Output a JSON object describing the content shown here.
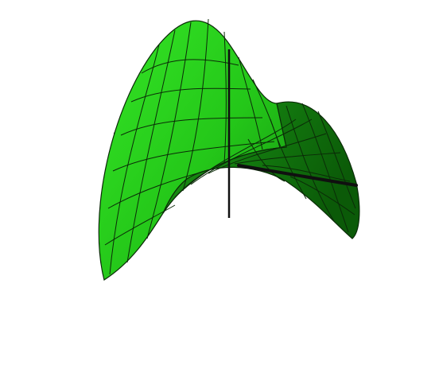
{
  "figure": {
    "kind": "hyperbolic-paraboloid",
    "surface_colors": {
      "lit_face": "#2bdc1d",
      "mid_face": "#1fa416",
      "shadow_face": "#0d6e0a",
      "mesh_lines": "#0b2a08"
    },
    "axis_color": "#101010",
    "background": "#ffffff"
  }
}
